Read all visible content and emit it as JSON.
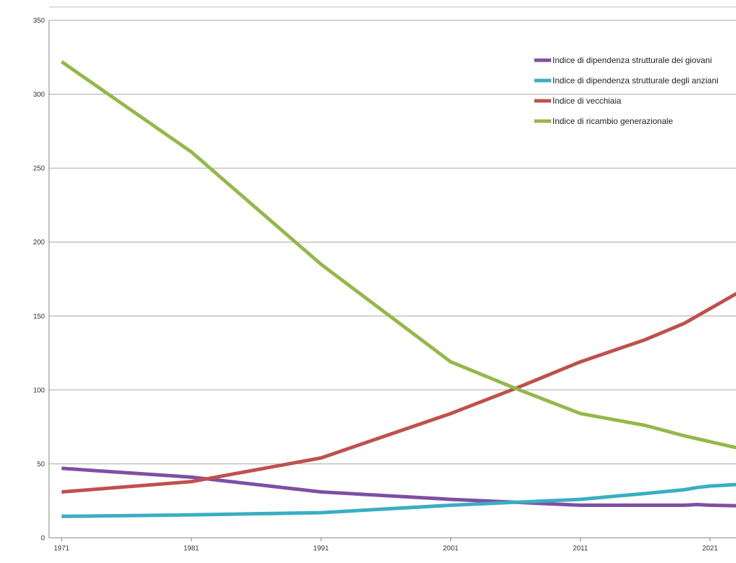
{
  "chart_data": {
    "type": "line",
    "title": "",
    "xlabel": "",
    "ylabel": "",
    "ylim": [
      0,
      350
    ],
    "yticks": [
      0,
      50,
      100,
      150,
      200,
      250,
      300,
      350
    ],
    "xlim": [
      1971,
      2024
    ],
    "xticks": [
      1971,
      1981,
      1991,
      2001,
      2011,
      2021
    ],
    "grid": "horizontal",
    "legend_position": "top-right",
    "series": [
      {
        "name": "Indice di dipendenza strutturale dei giovani",
        "color": "#7f4fa3",
        "points": [
          [
            1971,
            47
          ],
          [
            1981,
            41
          ],
          [
            1991,
            31
          ],
          [
            2001,
            26
          ],
          [
            2006,
            24
          ],
          [
            2011,
            22
          ],
          [
            2016,
            22
          ],
          [
            2019,
            22
          ],
          [
            2020,
            22.5
          ],
          [
            2021,
            22
          ],
          [
            2024,
            21.5
          ]
        ]
      },
      {
        "name": "Indice di dipendenza strutturale degli anziani",
        "color": "#3aaec3",
        "points": [
          [
            1971,
            14.5
          ],
          [
            1981,
            15.5
          ],
          [
            1991,
            17
          ],
          [
            2001,
            22
          ],
          [
            2006,
            24
          ],
          [
            2011,
            26
          ],
          [
            2016,
            30
          ],
          [
            2019,
            32.5
          ],
          [
            2020,
            34
          ],
          [
            2021,
            35
          ],
          [
            2024,
            36.5
          ]
        ]
      },
      {
        "name": "Indice di vecchiaia",
        "color": "#c0504d",
        "points": [
          [
            1971,
            31
          ],
          [
            1981,
            38
          ],
          [
            1991,
            54
          ],
          [
            2001,
            84
          ],
          [
            2006,
            101
          ],
          [
            2011,
            119
          ],
          [
            2016,
            134
          ],
          [
            2019,
            145
          ],
          [
            2020,
            150
          ],
          [
            2021,
            155
          ],
          [
            2024,
            170
          ]
        ]
      },
      {
        "name": "Indice di ricambio generazionale",
        "color": "#94b84a",
        "points": [
          [
            1971,
            322
          ],
          [
            1981,
            261
          ],
          [
            1991,
            185
          ],
          [
            2001,
            119
          ],
          [
            2006,
            101
          ],
          [
            2011,
            84
          ],
          [
            2016,
            76
          ],
          [
            2019,
            69
          ],
          [
            2020,
            67
          ],
          [
            2021,
            65
          ],
          [
            2024,
            59
          ]
        ]
      }
    ]
  }
}
